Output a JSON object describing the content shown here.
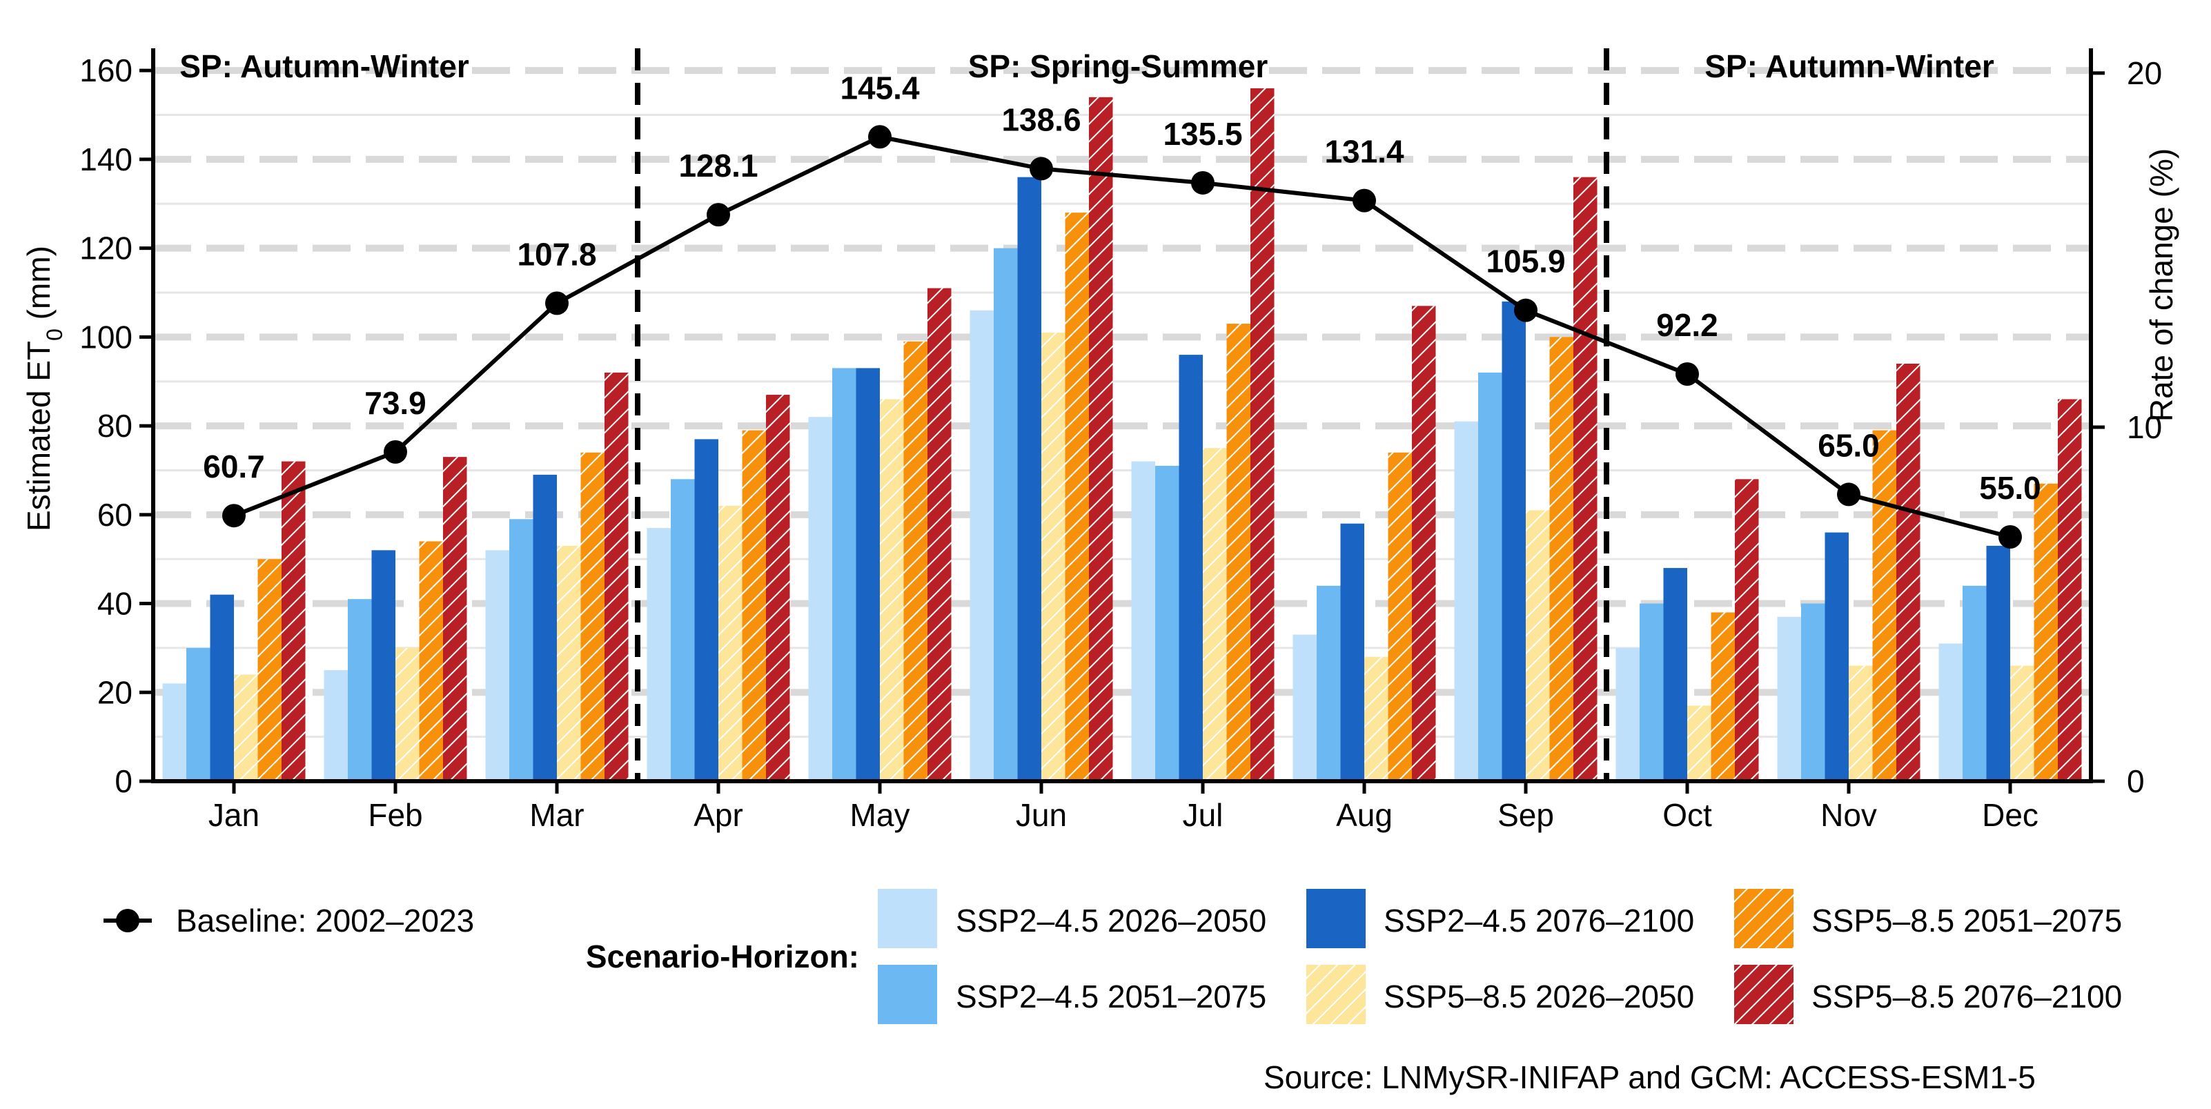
{
  "chart_data": {
    "type": "bar",
    "categories": [
      "Jan",
      "Feb",
      "Mar",
      "Apr",
      "May",
      "Jun",
      "Jul",
      "Aug",
      "Sep",
      "Oct",
      "Nov",
      "Dec"
    ],
    "ylabel": "Estimated ET",
    "ylabel_subscript": "0",
    "ylabel_unit": " (mm)",
    "y2label": "Rate of change (%)",
    "ylim": [
      0,
      165
    ],
    "y2lim": [
      0,
      20.7
    ],
    "yticks": [
      0,
      20,
      40,
      60,
      80,
      100,
      120,
      140,
      160
    ],
    "y2ticks": [
      0,
      10,
      20
    ],
    "grid": "horizontal dashed",
    "season_labels": [
      {
        "text": "SP: Autumn-Winter",
        "start": 0,
        "end": 2
      },
      {
        "text": "SP: Spring-Summer",
        "start": 3,
        "end": 8
      },
      {
        "text": "SP: Autumn-Winter",
        "start": 9,
        "end": 11
      }
    ],
    "season_dividers_after": [
      2,
      8
    ],
    "series": [
      {
        "name": "SSP2–4.5 2026–2050",
        "color": "#bfe0fb",
        "hatch": false,
        "values": [
          22,
          25,
          52,
          57,
          82,
          106,
          72,
          33,
          81,
          30,
          37,
          31
        ]
      },
      {
        "name": "SSP2–4.5 2051–2075",
        "color": "#6bb8f3",
        "hatch": false,
        "values": [
          30,
          41,
          59,
          68,
          93,
          120,
          71,
          44,
          92,
          40,
          40,
          44
        ]
      },
      {
        "name": "SSP2–4.5 2076–2100",
        "color": "#1a64c4",
        "hatch": false,
        "values": [
          42,
          52,
          69,
          77,
          93,
          136,
          96,
          58,
          108,
          48,
          56,
          53
        ]
      },
      {
        "name": "SSP5–8.5 2026–2050",
        "color": "#fde59a",
        "hatch": true,
        "values": [
          24,
          30,
          53,
          62,
          86,
          101,
          75,
          28,
          61,
          17,
          26,
          26
        ]
      },
      {
        "name": "SSP5–8.5 2051–2075",
        "color": "#f7910b",
        "hatch": true,
        "values": [
          50,
          54,
          74,
          79,
          99,
          128,
          103,
          74,
          100,
          38,
          79,
          67
        ]
      },
      {
        "name": "SSP5–8.5 2076–2100",
        "color": "#b82025",
        "hatch": true,
        "values": [
          72,
          73,
          92,
          87,
          111,
          154,
          156,
          107,
          136,
          68,
          94,
          86
        ]
      }
    ],
    "baseline": {
      "name": "Baseline: 2002–2023",
      "axis": "right",
      "values": [
        7.5,
        9.3,
        13.5,
        16.0,
        18.2,
        17.3,
        16.9,
        16.4,
        13.3,
        11.5,
        8.1,
        6.9
      ],
      "labels": [
        "60.7",
        "73.9",
        "107.8",
        "128.1",
        "145.4",
        "138.6",
        "135.5",
        "131.4",
        "105.9",
        "92.2",
        "65.0",
        "55.0"
      ]
    },
    "legend_heading": "Scenario-Horizon:",
    "legend_placement": "bottom",
    "source": "Source: LNMySR-INIFAP and GCM: ACCESS-ESM1-5"
  }
}
